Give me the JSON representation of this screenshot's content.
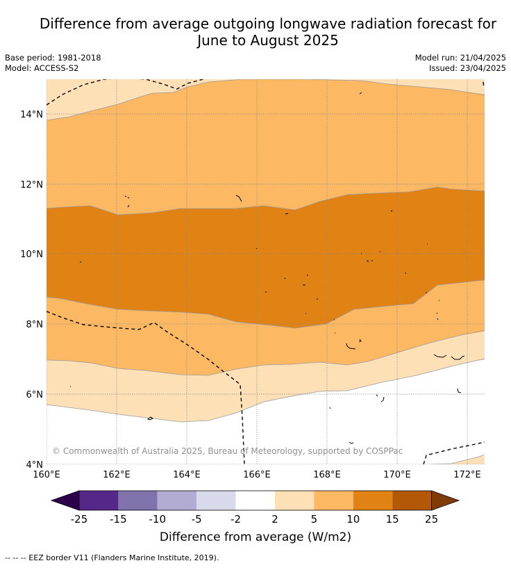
{
  "title_line1": "Difference from average outgoing longwave radiation forecast for",
  "title_line2": "June to August 2025",
  "base_period": "Base period: 1981-2018",
  "model": "Model: ACCESS-S2",
  "model_run": "Model run: 21/04/2025",
  "issued": "Issued: 23/04/2025",
  "copyright": "© Commonwealth of Australia 2025, Bureau of Meteorology, supported by COSPPac",
  "lat_ticks": [
    "4°N",
    "6°N",
    "8°N",
    "10°N",
    "12°N",
    "14°N"
  ],
  "lon_ticks": [
    "160°E",
    "162°E",
    "164°E",
    "166°E",
    "168°E",
    "170°E",
    "172°E"
  ],
  "colorbar": {
    "label": "Difference from average (W/m2)",
    "ticks": [
      "-25",
      "-15",
      "-10",
      "-5",
      "-2",
      "2",
      "5",
      "10",
      "15",
      "25"
    ],
    "colors": [
      "#2d004b",
      "#542788",
      "#8073ac",
      "#b2abd2",
      "#d8daeb",
      "#ffffff",
      "#fee0b6",
      "#fdb863",
      "#e08214",
      "#b35806",
      "#7f3b08"
    ]
  },
  "footnote": "-- -- -- EEZ border V11 (Flanders Marine Institute, 2019)."
}
